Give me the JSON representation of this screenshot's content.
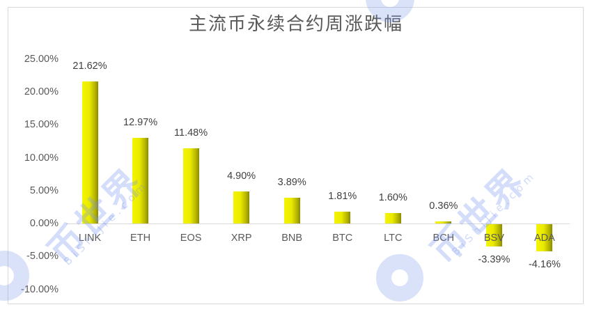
{
  "chart_data": {
    "type": "bar",
    "title": "主流币永续合约周涨跌幅",
    "xlabel": "",
    "ylabel": "",
    "categories": [
      "LINK",
      "ETH",
      "EOS",
      "XRP",
      "BNB",
      "BTC",
      "LTC",
      "BCH",
      "BSV",
      "ADA"
    ],
    "values": [
      21.62,
      12.97,
      11.48,
      4.9,
      3.89,
      1.81,
      1.6,
      0.36,
      -3.39,
      -4.16
    ],
    "value_labels": [
      "21.62%",
      "12.97%",
      "11.48%",
      "4.90%",
      "3.89%",
      "1.81%",
      "1.60%",
      "0.36%",
      "-3.39%",
      "-4.16%"
    ],
    "unit": "%",
    "ylim": [
      -10,
      25
    ],
    "yticks": [
      "25.00%",
      "20.00%",
      "15.00%",
      "10.00%",
      "5.00%",
      "0.00%",
      "-5.00%",
      "-10.00%"
    ],
    "ytick_values": [
      25,
      20,
      15,
      10,
      5,
      0,
      -5,
      -10
    ],
    "grid": false,
    "legend": "none",
    "bar_color": "#eaea00"
  },
  "watermark": {
    "brand": "币世界",
    "domain": "BiShiJie.com"
  }
}
